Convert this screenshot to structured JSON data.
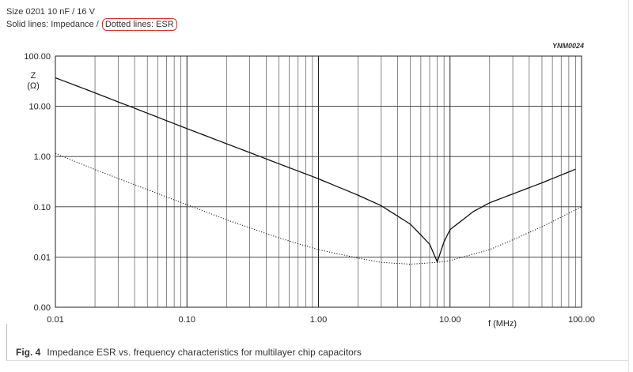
{
  "header": {
    "line1": "Size 0201 10 nF / 16 V",
    "line2_prefix": "Solid lines: Impedance / ",
    "line2_highlight": "Dotted lines: ESR",
    "highlight_color": "#d9302c"
  },
  "figure_code": "YNM0024",
  "caption": {
    "fig_label": "Fig. 4",
    "text": "Impedance ESR vs. frequency characteristics for multilayer chip capacitors"
  },
  "chart_data": {
    "type": "line",
    "title": "",
    "xlabel": "f  (MHz)",
    "ylabel_line1": "Z",
    "ylabel_line2": "(Ω)",
    "x_scale": "log",
    "y_scale": "log",
    "xlim": [
      0.01,
      100
    ],
    "ylim": [
      0.001,
      100
    ],
    "x_ticks": [
      0.01,
      0.1,
      1,
      10,
      100
    ],
    "x_tick_labels": [
      "0.01",
      "0.10",
      "1.00",
      "10.00",
      "100.00"
    ],
    "y_ticks": [
      0.001,
      0.01,
      0.1,
      1,
      10,
      100
    ],
    "y_tick_labels": [
      "0.00",
      "0.01",
      "0.10",
      "1.00",
      "10.00",
      "100.00"
    ],
    "grid": true,
    "series": [
      {
        "style": "solid",
        "x": [
          0.01,
          0.02,
          0.05,
          0.1,
          0.2,
          0.5,
          1,
          2,
          3,
          5,
          7,
          8,
          9,
          10,
          15,
          20,
          30,
          50,
          90
        ],
        "y": [
          37,
          18.5,
          7.3,
          3.6,
          1.8,
          0.72,
          0.36,
          0.17,
          0.105,
          0.045,
          0.018,
          0.008,
          0.02,
          0.035,
          0.08,
          0.12,
          0.18,
          0.3,
          0.56
        ]
      },
      {
        "style": "dotted",
        "x": [
          0.01,
          0.02,
          0.05,
          0.1,
          0.2,
          0.5,
          1,
          2,
          3,
          5,
          8,
          10,
          20,
          30,
          50,
          100
        ],
        "y": [
          1.15,
          0.55,
          0.22,
          0.11,
          0.055,
          0.024,
          0.014,
          0.0095,
          0.0078,
          0.0072,
          0.0078,
          0.0085,
          0.014,
          0.022,
          0.04,
          0.1
        ]
      }
    ]
  }
}
